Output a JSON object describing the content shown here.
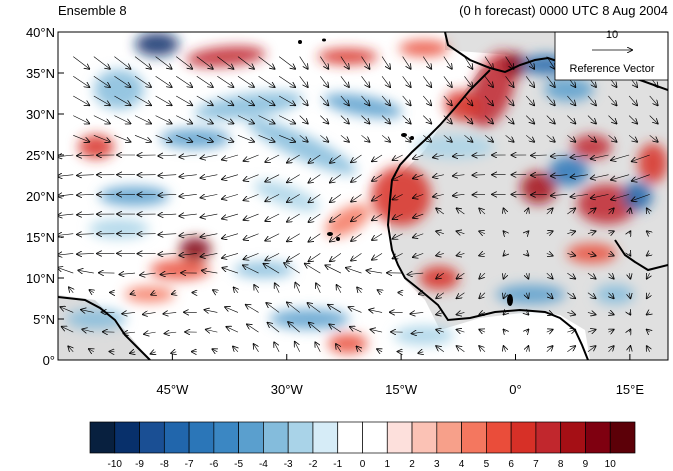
{
  "header": {
    "left_title": "Ensemble 8",
    "right_title": "(0 h forecast) 0000 UTC 8 Aug 2004"
  },
  "map": {
    "lon_range": [
      -60,
      20
    ],
    "lat_range": [
      0,
      40
    ],
    "y_ticks": [
      "0°",
      "5°N",
      "10°N",
      "15°N",
      "20°N",
      "25°N",
      "30°N",
      "35°N",
      "40°N"
    ],
    "x_ticks": [
      "45°W",
      "30°W",
      "15°W",
      "0°",
      "15°E"
    ],
    "x_tick_values": [
      -45,
      -30,
      -15,
      0,
      15
    ],
    "y_tick_values": [
      0,
      5,
      10,
      15,
      20,
      25,
      30,
      35,
      40
    ]
  },
  "reference_vector": {
    "magnitude": "10",
    "label": "Reference Vector"
  },
  "colorbar": {
    "labels": [
      "-10",
      "-9",
      "-8",
      "-7",
      "-6",
      "-5",
      "-4",
      "-3",
      "-2",
      "-1",
      "0",
      "1",
      "2",
      "3",
      "4",
      "5",
      "6",
      "7",
      "8",
      "9",
      "10"
    ],
    "colors": [
      "#08203f",
      "#08306b",
      "#1a4f94",
      "#2166ac",
      "#2b76b8",
      "#3b87c3",
      "#5a9fce",
      "#84bcdc",
      "#a9d3e8",
      "#d6ecf7",
      "#ffffff",
      "#ffffff",
      "#fde0dc",
      "#fbc2b5",
      "#f7a08a",
      "#f4775f",
      "#ea4d3a",
      "#d73027",
      "#c1272d",
      "#a50f15",
      "#7f0010",
      "#5c0008"
    ]
  },
  "colors": {
    "land": "#d8d8d8",
    "coast": "#000000"
  }
}
